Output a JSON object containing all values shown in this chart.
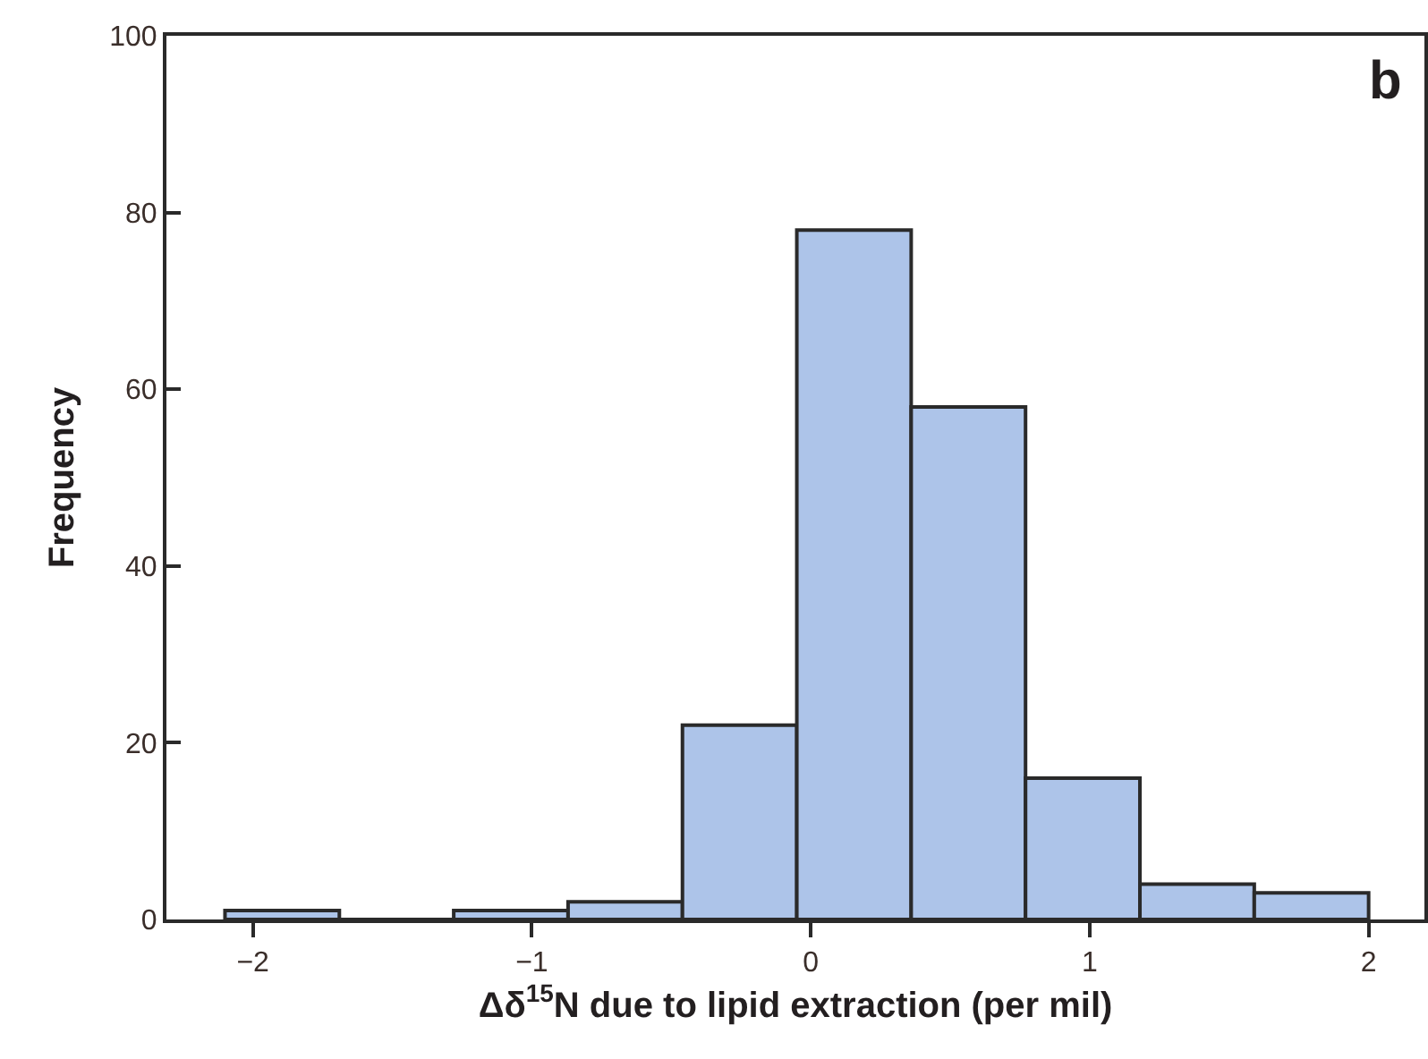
{
  "chart_data": {
    "type": "histogram",
    "xlabel": "Δδ$^{15}$N due to lipid extraction (per mil)",
    "ylabel": "Frequency",
    "annotations": [
      "b"
    ],
    "bins": [
      -2.1,
      -1.69,
      -1.28,
      -0.87,
      -0.46,
      -0.05,
      0.36,
      0.77,
      1.18,
      1.59,
      2.0
    ],
    "values": [
      1,
      0,
      1,
      2,
      22,
      78,
      58,
      16,
      4,
      3
    ],
    "color": "#adc4e9",
    "xlim": [
      -2.31,
      2.2
    ],
    "xticks": [
      {
        "value": -2,
        "label": "−2"
      },
      {
        "value": -1,
        "label": "−1"
      },
      0,
      1,
      2
    ],
    "ylim": [
      0,
      100
    ],
    "yticks": [
      0,
      20,
      40,
      60,
      80,
      100
    ]
  }
}
